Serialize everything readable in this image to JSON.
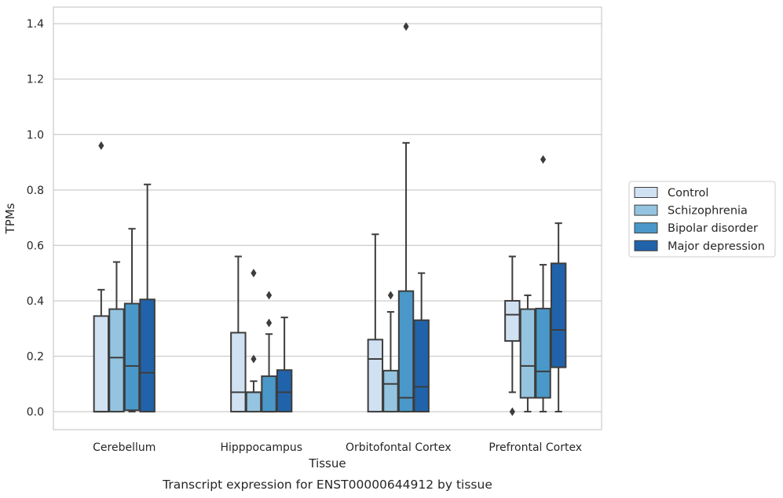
{
  "chart_data": {
    "type": "box",
    "title": "",
    "caption": "Transcript expression for ENST00000644912 by tissue",
    "xlabel": "Tissue",
    "ylabel": "TPMs",
    "ylim": [
      -0.065,
      1.46
    ],
    "yticks": [
      0.0,
      0.2,
      0.4,
      0.6,
      0.8,
      1.0,
      1.2,
      1.4
    ],
    "ytick_labels": [
      "0.0",
      "0.2",
      "0.4",
      "0.6",
      "0.8",
      "1.0",
      "1.2",
      "1.4"
    ],
    "grid": "horizontal",
    "legend_position": "right-center",
    "categories": [
      "Cerebellum",
      "Hipppocampus",
      "Orbitofontal Cortex",
      "Prefrontal Cortex"
    ],
    "series": [
      {
        "name": "Control",
        "color": "#d0e1f2",
        "boxes": [
          {
            "low": 0.0,
            "q1": 0.0,
            "median": 0.0,
            "q3": 0.345,
            "high": 0.44,
            "outliers": [
              0.96
            ]
          },
          {
            "low": 0.0,
            "q1": 0.0,
            "median": 0.07,
            "q3": 0.285,
            "high": 0.56,
            "outliers": []
          },
          {
            "low": 0.0,
            "q1": 0.0,
            "median": 0.19,
            "q3": 0.26,
            "high": 0.64,
            "outliers": []
          },
          {
            "low": 0.07,
            "q1": 0.255,
            "median": 0.35,
            "q3": 0.4,
            "high": 0.56,
            "outliers": [
              0.0
            ]
          }
        ]
      },
      {
        "name": "Schizophrenia",
        "color": "#94c4df",
        "boxes": [
          {
            "low": 0.0,
            "q1": 0.0,
            "median": 0.195,
            "q3": 0.37,
            "high": 0.54,
            "outliers": []
          },
          {
            "low": 0.0,
            "q1": 0.0,
            "median": 0.07,
            "q3": 0.07,
            "high": 0.11,
            "outliers": [
              0.19,
              0.5
            ]
          },
          {
            "low": 0.0,
            "q1": 0.0,
            "median": 0.1,
            "q3": 0.148,
            "high": 0.36,
            "outliers": [
              0.42
            ]
          },
          {
            "low": 0.0,
            "q1": 0.05,
            "median": 0.165,
            "q3": 0.37,
            "high": 0.42,
            "outliers": []
          }
        ]
      },
      {
        "name": "Bipolar disorder",
        "color": "#4a98c9",
        "boxes": [
          {
            "low": 0.0,
            "q1": 0.005,
            "median": 0.165,
            "q3": 0.39,
            "high": 0.66,
            "outliers": []
          },
          {
            "low": 0.0,
            "q1": 0.0,
            "median": 0.0,
            "q3": 0.128,
            "high": 0.28,
            "outliers": [
              0.32,
              0.42
            ]
          },
          {
            "low": 0.0,
            "q1": 0.0,
            "median": 0.05,
            "q3": 0.435,
            "high": 0.97,
            "outliers": [
              1.39
            ]
          },
          {
            "low": 0.0,
            "q1": 0.05,
            "median": 0.145,
            "q3": 0.372,
            "high": 0.53,
            "outliers": [
              0.91
            ]
          }
        ]
      },
      {
        "name": "Major depression",
        "color": "#2163aa",
        "boxes": [
          {
            "low": 0.0,
            "q1": 0.0,
            "median": 0.14,
            "q3": 0.405,
            "high": 0.82,
            "outliers": []
          },
          {
            "low": 0.0,
            "q1": 0.0,
            "median": 0.07,
            "q3": 0.15,
            "high": 0.34,
            "outliers": []
          },
          {
            "low": 0.0,
            "q1": 0.0,
            "median": 0.09,
            "q3": 0.33,
            "high": 0.5,
            "outliers": []
          },
          {
            "low": 0.0,
            "q1": 0.16,
            "median": 0.295,
            "q3": 0.535,
            "high": 0.68,
            "outliers": []
          }
        ]
      }
    ]
  }
}
